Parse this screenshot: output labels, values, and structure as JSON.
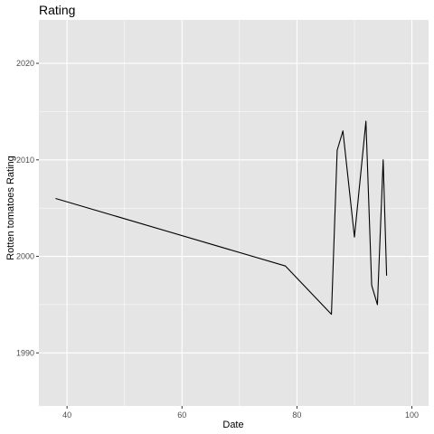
{
  "chart_data": {
    "type": "line",
    "title": "Rating",
    "xlabel": "Date",
    "ylabel": "Rotten tomatoes Rating",
    "xlim": [
      35.1,
      102.9
    ],
    "ylim": [
      1984.5,
      2024.5
    ],
    "x_ticks": [
      40,
      60,
      80,
      100
    ],
    "y_ticks": [
      1990,
      2000,
      2010,
      2020
    ],
    "x_minor": [
      50,
      70,
      90
    ],
    "y_minor": [
      1995,
      2005,
      2015
    ],
    "grid": true,
    "legend": "none",
    "series": [
      {
        "x": [
          38,
          78,
          86,
          87,
          88,
          90,
          92,
          93,
          94,
          95,
          95.6
        ],
        "y": [
          2006,
          1999,
          1994,
          2011,
          2013,
          2002,
          2014,
          1997,
          1995,
          2010,
          1998
        ]
      }
    ]
  },
  "colors": {
    "panel_background": "#e5e5e5",
    "grid_major": "#ffffff",
    "line": "#000000"
  }
}
